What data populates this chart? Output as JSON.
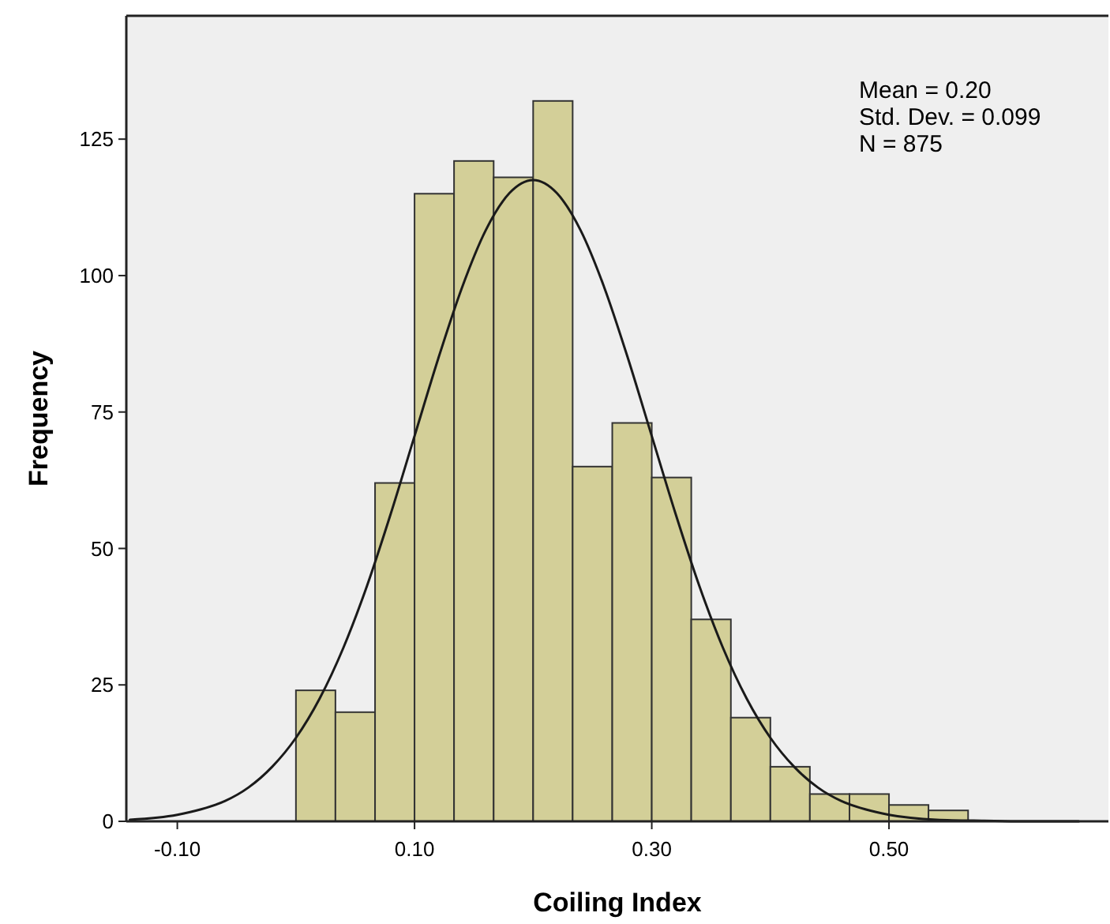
{
  "chart_data": {
    "type": "histogram",
    "xlabel": "Coiling Index",
    "ylabel": "Frequency",
    "bins": [
      0,
      0.0333,
      0.0667,
      0.1,
      0.1333,
      0.1667,
      0.2,
      0.2333,
      0.2667,
      0.3,
      0.3333,
      0.3667,
      0.4,
      0.4333,
      0.4667,
      0.5,
      0.5333,
      0.5667
    ],
    "values": [
      24,
      20,
      62,
      115,
      121,
      118,
      132,
      65,
      73,
      63,
      37,
      19,
      10,
      5,
      5,
      3,
      2
    ],
    "color": "#d3cf98",
    "series": [
      {
        "type": "line",
        "color": "#1a1a1a",
        "x": [
          -0.14,
          -0.1,
          -0.08,
          -0.06,
          -0.04,
          -0.02,
          0,
          0.02,
          0.04,
          0.06,
          0.08,
          0.1,
          0.12,
          0.14,
          0.16,
          0.18,
          0.2,
          0.22,
          0.24,
          0.26,
          0.28,
          0.3,
          0.32,
          0.34,
          0.36,
          0.38,
          0.4,
          0.42,
          0.44,
          0.46,
          0.48,
          0.5,
          0.54,
          0.58,
          0.62,
          0.66
        ],
        "values": [
          0.3,
          1.2,
          2.2,
          3.7,
          6.2,
          10,
          15.3,
          22.5,
          31.8,
          43.2,
          56.4,
          70.6,
          84.8,
          97.8,
          108.3,
          115.1,
          117.5,
          115.1,
          108.3,
          97.8,
          84.8,
          70.6,
          56.4,
          43.2,
          31.8,
          22.5,
          15.3,
          10,
          6.2,
          3.7,
          2.2,
          1.2,
          0.3,
          0.1,
          0,
          0
        ]
      }
    ],
    "annotations": [
      "Mean = 0.20",
      "Std. Dev. = 0.099",
      "N = 875"
    ],
    "xlim": [
      -0.143,
      0.685
    ],
    "ylim": [
      0,
      147.6
    ],
    "xticks": [
      {
        "value": -0.1,
        "label": "-0.10"
      },
      {
        "value": 0.1,
        "label": "0.10"
      },
      {
        "value": 0.3,
        "label": "0.30"
      },
      {
        "value": 0.5,
        "label": "0.50"
      }
    ],
    "yticks": [
      0,
      25,
      50,
      75,
      100,
      125
    ],
    "grid": false
  }
}
